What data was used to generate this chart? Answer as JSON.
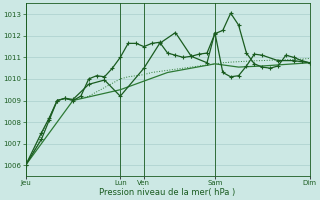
{
  "bg_color": "#cce8e4",
  "grid_color": "#aacfcc",
  "line_color_dark": "#1a5c20",
  "line_color_mid": "#2d7a35",
  "xlabel": "Pression niveau de la mer( hPa )",
  "ylim": [
    1005.5,
    1013.5
  ],
  "yticks": [
    1006,
    1007,
    1008,
    1009,
    1010,
    1011,
    1012,
    1013
  ],
  "xtick_labels": [
    "Jeu",
    "Lun",
    "Ven",
    "Sam",
    "Dim"
  ],
  "xtick_positions": [
    0,
    72,
    90,
    144,
    216
  ],
  "vline_positions": [
    0,
    72,
    90,
    144,
    216
  ],
  "series1_dotted": {
    "x": [
      0,
      3,
      6,
      9,
      12,
      15,
      18,
      21,
      24,
      27,
      30,
      33,
      36,
      42,
      48,
      54,
      60,
      66,
      72,
      78,
      84,
      90,
      96,
      102,
      108,
      114,
      120,
      126,
      132,
      138,
      144,
      150,
      156,
      162,
      168,
      174,
      180,
      186,
      192,
      198,
      204,
      210,
      216
    ],
    "y": [
      1006.0,
      1006.3,
      1006.6,
      1007.0,
      1007.4,
      1007.8,
      1008.2,
      1008.6,
      1009.0,
      1009.05,
      1009.1,
      1009.05,
      1009.0,
      1009.1,
      1009.2,
      1009.4,
      1009.6,
      1009.8,
      1010.0,
      1010.1,
      1010.15,
      1010.2,
      1010.3,
      1010.35,
      1010.4,
      1010.45,
      1010.5,
      1010.55,
      1010.6,
      1010.65,
      1010.7,
      1010.75,
      1010.78,
      1010.8,
      1010.82,
      1010.84,
      1010.85,
      1010.87,
      1010.88,
      1010.89,
      1010.9,
      1010.92,
      1010.95
    ]
  },
  "series2_smooth": {
    "x": [
      0,
      36,
      72,
      90,
      108,
      126,
      144,
      162,
      180,
      216
    ],
    "y": [
      1006.0,
      1009.0,
      1009.5,
      1009.9,
      1010.3,
      1010.5,
      1010.7,
      1010.55,
      1010.6,
      1010.75
    ]
  },
  "series3_markers": {
    "x": [
      0,
      12,
      18,
      24,
      30,
      36,
      42,
      48,
      54,
      60,
      66,
      72,
      78,
      84,
      90,
      96,
      102,
      108,
      114,
      120,
      126,
      132,
      138,
      144,
      150,
      156,
      162,
      168,
      174,
      180,
      186,
      192,
      198,
      204,
      210,
      216
    ],
    "y": [
      1006.0,
      1007.5,
      1008.2,
      1009.0,
      1009.1,
      1009.0,
      1009.2,
      1010.0,
      1010.15,
      1010.1,
      1010.5,
      1011.0,
      1011.65,
      1011.65,
      1011.5,
      1011.65,
      1011.7,
      1011.2,
      1011.1,
      1011.0,
      1011.05,
      1011.15,
      1011.2,
      1012.1,
      1012.25,
      1013.05,
      1012.5,
      1011.2,
      1010.7,
      1010.55,
      1010.5,
      1010.6,
      1011.1,
      1011.0,
      1010.85,
      1010.75
    ]
  },
  "series4_markers": {
    "x": [
      0,
      12,
      18,
      24,
      30,
      36,
      48,
      60,
      72,
      90,
      102,
      114,
      126,
      138,
      144,
      150,
      156,
      162,
      168,
      174,
      180,
      192,
      204,
      216
    ],
    "y": [
      1006.0,
      1007.2,
      1008.1,
      1009.0,
      1009.1,
      1009.05,
      1009.75,
      1009.95,
      1009.2,
      1010.5,
      1011.65,
      1012.15,
      1011.05,
      1010.75,
      1012.15,
      1010.3,
      1010.1,
      1010.15,
      1010.6,
      1011.15,
      1011.1,
      1010.85,
      1010.85,
      1010.75
    ]
  }
}
